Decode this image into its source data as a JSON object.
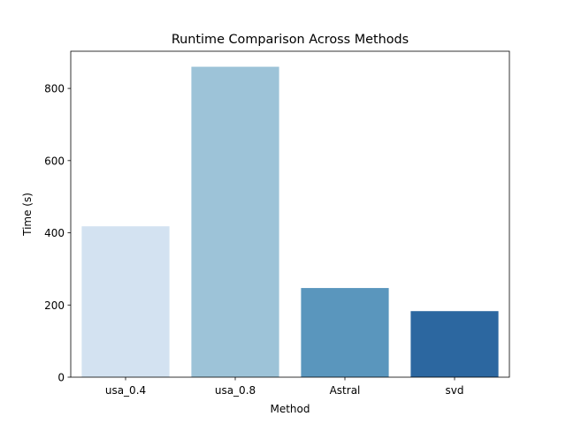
{
  "chart_data": {
    "type": "bar",
    "title": "Runtime Comparison Across Methods",
    "xlabel": "Method",
    "ylabel": "Time (s)",
    "categories": [
      "usa_0.4",
      "usa_0.8",
      "Astral",
      "svd"
    ],
    "values": [
      418,
      860,
      247,
      183
    ],
    "colors": [
      "#d3e2f1",
      "#9dc3d8",
      "#5a96bd",
      "#2c67a0"
    ],
    "ylim": [
      0,
      903
    ],
    "yticks": [
      0,
      200,
      400,
      600,
      800
    ],
    "grid": false,
    "legend": "none"
  }
}
